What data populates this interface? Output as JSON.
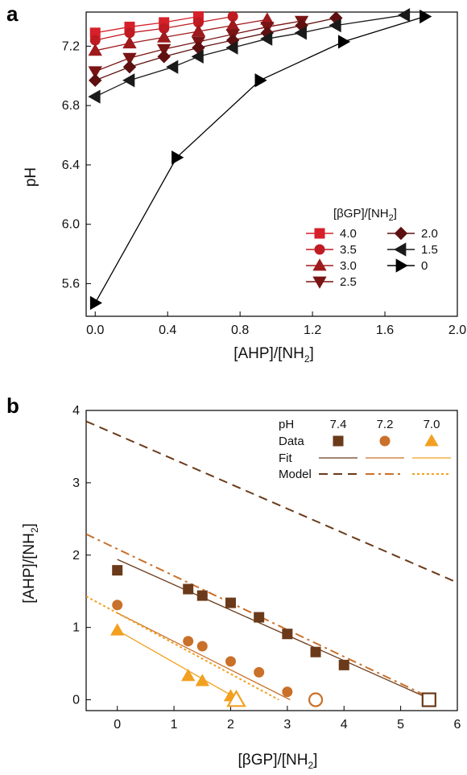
{
  "chart_data": [
    {
      "panel": "a",
      "type": "line",
      "xlabel": "[AHP]/[NH2]",
      "ylabel": "pH",
      "xlim": [
        -0.05,
        2.0
      ],
      "ylim": [
        5.38,
        7.43
      ],
      "xticks": [
        0.0,
        0.4,
        0.8,
        1.2,
        1.6,
        2.0
      ],
      "xtick_labels": [
        "0.0",
        "0.4",
        "0.8",
        "1.2",
        "1.6",
        "2.0"
      ],
      "yticks": [
        5.6,
        6.0,
        6.4,
        6.8,
        7.2
      ],
      "ytick_labels": [
        "5.6",
        "6.0",
        "6.4",
        "6.8",
        "7.2"
      ],
      "legend_title": "[βGP]/[NH2]",
      "legend_position": "bottom-right",
      "series": [
        {
          "name": "4.0",
          "color": "#d6202a",
          "marker": "square",
          "x": [
            0.0,
            0.19,
            0.38,
            0.57
          ],
          "y": [
            7.29,
            7.33,
            7.36,
            7.4
          ]
        },
        {
          "name": "3.5",
          "color": "#c01a22",
          "marker": "circle",
          "x": [
            0.0,
            0.19,
            0.38,
            0.57,
            0.76
          ],
          "y": [
            7.24,
            7.29,
            7.32,
            7.36,
            7.4
          ]
        },
        {
          "name": "3.0",
          "color": "#9e1a1c",
          "marker": "triangle-up",
          "x": [
            0.0,
            0.19,
            0.38,
            0.57,
            0.76,
            0.95
          ],
          "y": [
            7.17,
            7.22,
            7.26,
            7.3,
            7.34,
            7.38
          ]
        },
        {
          "name": "2.5",
          "color": "#7a1414",
          "marker": "triangle-down",
          "x": [
            0.0,
            0.19,
            0.38,
            0.57,
            0.76,
            0.95,
            1.14
          ],
          "y": [
            7.03,
            7.12,
            7.18,
            7.23,
            7.28,
            7.33,
            7.37
          ]
        },
        {
          "name": "2.0",
          "color": "#5e1010",
          "marker": "diamond",
          "x": [
            0.0,
            0.19,
            0.38,
            0.57,
            0.76,
            0.95,
            1.14,
            1.33
          ],
          "y": [
            6.97,
            7.06,
            7.13,
            7.19,
            7.24,
            7.29,
            7.34,
            7.39
          ]
        },
        {
          "name": "1.5",
          "color": "#1a1a1a",
          "marker": "triangle-left",
          "x": [
            0.0,
            0.19,
            0.43,
            0.57,
            0.76,
            0.95,
            1.14,
            1.33,
            1.71
          ],
          "y": [
            6.86,
            6.97,
            7.06,
            7.13,
            7.19,
            7.25,
            7.29,
            7.34,
            7.41
          ]
        },
        {
          "name": "0",
          "color": "#000000",
          "marker": "triangle-right",
          "x": [
            0.0,
            0.45,
            0.91,
            1.37,
            1.82
          ],
          "y": [
            5.47,
            6.45,
            6.97,
            7.23,
            7.4
          ]
        }
      ]
    },
    {
      "panel": "b",
      "type": "scatter",
      "xlabel": "[βGP]/[NH2]",
      "ylabel": "[AHP]/[NH2]",
      "xlim": [
        -0.55,
        6.0
      ],
      "ylim": [
        -0.15,
        4.0
      ],
      "xticks": [
        0,
        1,
        2,
        3,
        4,
        5,
        6
      ],
      "xtick_labels": [
        "0",
        "1",
        "2",
        "3",
        "4",
        "5",
        "6"
      ],
      "yticks": [
        0,
        1,
        2,
        3,
        4
      ],
      "ytick_labels": [
        "0",
        "1",
        "2",
        "3",
        "4"
      ],
      "legend_position": "top-right",
      "legend": {
        "header": "pH",
        "rows": [
          "Data",
          "Fit",
          "Model"
        ],
        "columns": [
          "7.4",
          "7.2",
          "7.0"
        ]
      },
      "series": [
        {
          "name": "7.4",
          "color": "#6b3a1a",
          "marker": "square",
          "x": [
            0.0,
            1.25,
            1.5,
            2.0,
            2.5,
            3.0,
            3.5,
            4.0
          ],
          "y": [
            1.79,
            1.53,
            1.44,
            1.34,
            1.14,
            0.91,
            0.66,
            0.48
          ],
          "open_points": [
            {
              "x": 5.5,
              "y": 0.0
            }
          ],
          "fit": {
            "x": [
              0.0,
              5.55
            ],
            "y": [
              1.94,
              0.0
            ]
          },
          "model": {
            "x": [
              -0.55,
              6.0
            ],
            "y": [
              3.85,
              1.62
            ],
            "style": "dashed"
          }
        },
        {
          "name": "7.2",
          "color": "#c9702a",
          "marker": "circle",
          "x": [
            0.0,
            1.25,
            1.5,
            2.0,
            2.5,
            3.0
          ],
          "y": [
            1.31,
            0.81,
            0.74,
            0.53,
            0.38,
            0.11
          ],
          "open_points": [
            {
              "x": 3.5,
              "y": 0.0
            }
          ],
          "fit": {
            "x": [
              0.0,
              3.05
            ],
            "y": [
              1.2,
              0.0
            ]
          },
          "model": {
            "x": [
              -0.55,
              5.6
            ],
            "y": [
              2.29,
              0.0
            ],
            "style": "dash-dot"
          }
        },
        {
          "name": "7.0",
          "color": "#f2a020",
          "marker": "triangle-up",
          "x": [
            0.0,
            1.25,
            1.5,
            2.0
          ],
          "y": [
            0.96,
            0.33,
            0.26,
            0.05
          ],
          "open_points": [
            {
              "x": 2.1,
              "y": 0.0
            }
          ],
          "fit": {
            "x": [
              0.0,
              2.15
            ],
            "y": [
              0.96,
              0.0
            ]
          },
          "model": {
            "x": [
              -0.55,
              2.85
            ],
            "y": [
              1.43,
              0.0
            ],
            "style": "dotted"
          }
        }
      ]
    }
  ]
}
